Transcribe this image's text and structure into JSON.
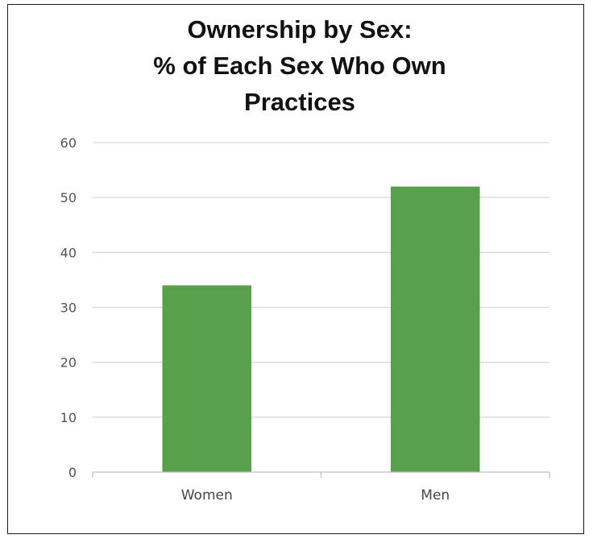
{
  "chart_data": {
    "type": "bar",
    "title": [
      "Ownership by Sex:",
      "% of Each Sex  Who Own",
      "Practices"
    ],
    "categories": [
      "Women",
      "Men"
    ],
    "values": [
      34,
      52
    ],
    "ylim": [
      0,
      60
    ],
    "yticks": [
      0,
      10,
      20,
      30,
      40,
      50,
      60
    ],
    "grid": true,
    "legend": "none",
    "bar_color": "#58a04c",
    "grid_color": "#d9d9d9",
    "axis_color": "#bfbfbf"
  }
}
